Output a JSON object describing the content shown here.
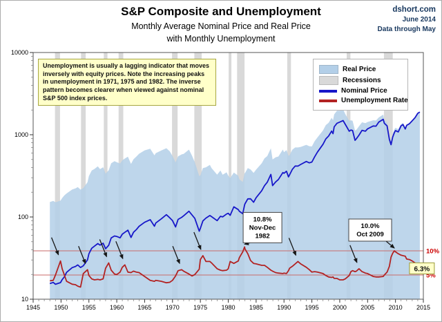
{
  "source": {
    "site": "dshort.com",
    "date": "June 2014",
    "note": "Data through May"
  },
  "note_box": {
    "text": "Unemployment is usually a lagging indicator that moves inversely with equity prices. Note the increasing peaks in unemployment in 1971, 1975 and 1982.  The inverse pattern becomes clearer when viewed against nominal S&P 500 index prices."
  },
  "chart_data": {
    "type": "line",
    "title": "S&P Composite and Unemployment",
    "subtitles": [
      "Monthly Average Nominal Price and Real Price",
      "with Monthly Unemployment"
    ],
    "x_axis": {
      "min": 1945,
      "max": 2015,
      "ticks": [
        1945,
        1950,
        1955,
        1960,
        1965,
        1970,
        1975,
        1980,
        1985,
        1990,
        1995,
        2000,
        2005,
        2010,
        2015
      ]
    },
    "y_axis_price": {
      "scale": "log",
      "min": 10,
      "max": 10000,
      "ticks": [
        10,
        100,
        1000,
        10000
      ]
    },
    "y_axis_unemployment": {
      "min": 0,
      "max": 51,
      "gridlines": [
        {
          "value": 10,
          "label": "10%"
        },
        {
          "value": 5,
          "label": "5%"
        }
      ]
    },
    "legend": {
      "position": "top-right",
      "items": [
        {
          "label": "Real Price",
          "swatch": "area",
          "color": "#b3cfe8"
        },
        {
          "label": "Recessions",
          "swatch": "area",
          "color": "#d9d9d9"
        },
        {
          "label": "Nominal Price",
          "swatch": "line",
          "color": "#1717c9"
        },
        {
          "label": "Unemployment Rate",
          "swatch": "line",
          "color": "#b22222"
        }
      ]
    },
    "series": [
      {
        "name": "Real Price",
        "type": "area",
        "axis": "price",
        "color": "#b3cfe8",
        "column": 2
      },
      {
        "name": "Nominal Price",
        "type": "line",
        "axis": "price",
        "color": "#1717c9",
        "column": 1
      },
      {
        "name": "Unemployment Rate",
        "type": "line",
        "axis": "unemployment",
        "color": "#b22222",
        "column": 3
      }
    ],
    "columns": [
      "year",
      "nominal_price",
      "real_price",
      "unemployment_rate_pct"
    ],
    "points": [
      [
        1948.0,
        15.5,
        152,
        3.8
      ],
      [
        1948.6,
        16.0,
        157,
        3.9
      ],
      [
        1949.0,
        15.2,
        151,
        5.0
      ],
      [
        1949.9,
        15.9,
        158,
        7.9
      ],
      [
        1950.2,
        17.3,
        170,
        6.3
      ],
      [
        1950.6,
        18.7,
        183,
        5.0
      ],
      [
        1951.0,
        21.2,
        193,
        3.7
      ],
      [
        1952.0,
        24.2,
        216,
        3.1
      ],
      [
        1952.6,
        25.0,
        223,
        3.0
      ],
      [
        1953.0,
        26.1,
        231,
        2.7
      ],
      [
        1953.5,
        24.3,
        215,
        2.5
      ],
      [
        1954.0,
        25.5,
        224,
        5.3
      ],
      [
        1954.75,
        30.1,
        264,
        6.1
      ],
      [
        1955.0,
        35.6,
        314,
        4.9
      ],
      [
        1955.5,
        41.6,
        367,
        4.2
      ],
      [
        1956.0,
        44.2,
        384,
        4.0
      ],
      [
        1956.6,
        47.5,
        413,
        4.1
      ],
      [
        1957.0,
        45.4,
        382,
        4.0
      ],
      [
        1957.55,
        47.9,
        403,
        4.2
      ],
      [
        1958.0,
        41.1,
        336,
        6.4
      ],
      [
        1958.55,
        45.2,
        370,
        7.5
      ],
      [
        1959.0,
        55.6,
        451,
        6.0
      ],
      [
        1959.6,
        58.7,
        477,
        5.2
      ],
      [
        1960.0,
        58.0,
        463,
        5.1
      ],
      [
        1960.6,
        55.7,
        445,
        5.6
      ],
      [
        1961.0,
        61.8,
        488,
        6.6
      ],
      [
        1961.45,
        65.1,
        514,
        7.1
      ],
      [
        1962.0,
        69.1,
        541,
        5.6
      ],
      [
        1962.55,
        56.3,
        441,
        5.5
      ],
      [
        1963.0,
        65.1,
        503,
        5.8
      ],
      [
        1963.5,
        70.0,
        541,
        5.6
      ],
      [
        1964.0,
        77.0,
        587,
        5.5
      ],
      [
        1965.0,
        86.1,
        646,
        4.7
      ],
      [
        1966.0,
        92.7,
        676,
        3.9
      ],
      [
        1966.75,
        77.1,
        562,
        3.7
      ],
      [
        1967.0,
        84.5,
        598,
        3.9
      ],
      [
        1968.0,
        95.0,
        645,
        3.7
      ],
      [
        1968.9,
        106.5,
        686,
        3.4
      ],
      [
        1969.5,
        97.7,
        629,
        3.5
      ],
      [
        1970.0,
        90.3,
        550,
        3.9
      ],
      [
        1970.55,
        75.7,
        461,
        4.8
      ],
      [
        1971.0,
        93.5,
        546,
        5.9
      ],
      [
        1971.65,
        99.0,
        577,
        6.1
      ],
      [
        1972.0,
        103.3,
        584,
        5.8
      ],
      [
        1972.95,
        117.5,
        660,
        5.2
      ],
      [
        1973.5,
        105.8,
        558,
        4.8
      ],
      [
        1974.0,
        96.1,
        461,
        5.1
      ],
      [
        1974.8,
        67.1,
        315,
        6.2
      ],
      [
        1975.0,
        72.6,
        319,
        8.2
      ],
      [
        1975.45,
        89.6,
        393,
        9.0
      ],
      [
        1976.0,
        96.9,
        402,
        7.8
      ],
      [
        1976.7,
        104.2,
        430,
        7.8
      ],
      [
        1977.0,
        100.9,
        393,
        7.5
      ],
      [
        1978.0,
        90.2,
        327,
        6.3
      ],
      [
        1978.6,
        102.0,
        368,
        6.0
      ],
      [
        1979.0,
        100.1,
        326,
        5.9
      ],
      [
        1979.7,
        108.6,
        349,
        6.0
      ],
      [
        1980.0,
        110.9,
        318,
        6.3
      ],
      [
        1980.35,
        104.7,
        297,
        7.8
      ],
      [
        1981.0,
        133.0,
        346,
        7.4
      ],
      [
        1981.8,
        122.9,
        317,
        7.9
      ],
      [
        1982.0,
        117.3,
        287,
        8.6
      ],
      [
        1982.6,
        109.7,
        266,
        9.8
      ],
      [
        1982.92,
        139.4,
        339,
        10.8
      ],
      [
        1983.0,
        144.3,
        342,
        10.4
      ],
      [
        1983.5,
        166.0,
        393,
        9.4
      ],
      [
        1984.0,
        166.4,
        378,
        8.0
      ],
      [
        1984.55,
        151.1,
        343,
        7.4
      ],
      [
        1985.0,
        171.6,
        377,
        7.3
      ],
      [
        1986.0,
        208.2,
        449,
        7.0
      ],
      [
        1986.5,
        240.2,
        517,
        7.0
      ],
      [
        1987.0,
        264.5,
        550,
        6.6
      ],
      [
        1987.65,
        329.4,
        685,
        6.0
      ],
      [
        1987.95,
        240.9,
        501,
        5.8
      ],
      [
        1988.5,
        266.7,
        532,
        5.5
      ],
      [
        1989.0,
        285.4,
        544,
        5.4
      ],
      [
        1989.8,
        347.0,
        661,
        5.3
      ],
      [
        1990.0,
        339.9,
        614,
        5.4
      ],
      [
        1990.45,
        360.0,
        650,
        5.3
      ],
      [
        1990.8,
        307.1,
        555,
        5.9
      ],
      [
        1991.0,
        325.5,
        563,
        6.4
      ],
      [
        1991.5,
        379.4,
        658,
        6.8
      ],
      [
        1992.0,
        416.1,
        701,
        7.3
      ],
      [
        1992.5,
        415.4,
        700,
        7.8
      ],
      [
        1993.0,
        435.2,
        712,
        7.3
      ],
      [
        1994.0,
        472.9,
        754,
        6.6
      ],
      [
        1994.55,
        454.8,
        725,
        6.1
      ],
      [
        1995.0,
        465.3,
        721,
        5.6
      ],
      [
        1995.5,
        539.4,
        836,
        5.7
      ],
      [
        1996.0,
        614.4,
        925,
        5.6
      ],
      [
        1997.0,
        766.2,
        1128,
        5.3
      ],
      [
        1997.5,
        891.1,
        1312,
        4.9
      ],
      [
        1998.0,
        963.4,
        1397,
        4.6
      ],
      [
        1998.55,
        1108.4,
        1607,
        4.5
      ],
      [
        1998.8,
        1032.0,
        1497,
        4.6
      ],
      [
        1999.0,
        1248.8,
        1771,
        4.3
      ],
      [
        1999.5,
        1380.0,
        1957,
        4.3
      ],
      [
        2000.0,
        1425.6,
        1956,
        4.0
      ],
      [
        2000.6,
        1485.5,
        2038,
        4.0
      ],
      [
        2001.0,
        1335.6,
        1782,
        4.2
      ],
      [
        2001.7,
        1104.0,
        1473,
        4.9
      ],
      [
        2002.0,
        1140.2,
        1498,
        5.7
      ],
      [
        2002.3,
        1125.0,
        1478,
        5.9
      ],
      [
        2002.75,
        854.6,
        1123,
        5.7
      ],
      [
        2003.0,
        895.8,
        1150,
        5.8
      ],
      [
        2003.45,
        988.0,
        1269,
        6.3
      ],
      [
        2004.0,
        1132.5,
        1417,
        5.7
      ],
      [
        2004.6,
        1104.0,
        1381,
        5.4
      ],
      [
        2005.0,
        1181.4,
        1430,
        5.3
      ],
      [
        2006.0,
        1278.7,
        1499,
        4.7
      ],
      [
        2006.5,
        1270.2,
        1489,
        4.6
      ],
      [
        2007.0,
        1424.2,
        1623,
        4.6
      ],
      [
        2007.8,
        1539.7,
        1755,
        4.7
      ],
      [
        2008.0,
        1378.8,
        1513,
        5.0
      ],
      [
        2008.5,
        1280.0,
        1405,
        5.6
      ],
      [
        2008.9,
        877.6,
        963,
        6.8
      ],
      [
        2009.2,
        757.1,
        834,
        8.7
      ],
      [
        2009.5,
        935.8,
        1030,
        9.5
      ],
      [
        2009.8,
        1057.1,
        1163,
        10.0
      ],
      [
        2010.0,
        1123.6,
        1213,
        9.8
      ],
      [
        2010.5,
        1083.4,
        1169,
        9.4
      ],
      [
        2011.0,
        1282.6,
        1347,
        9.1
      ],
      [
        2011.35,
        1331.0,
        1396,
        9.0
      ],
      [
        2011.75,
        1173.9,
        1233,
        8.9
      ],
      [
        2012.0,
        1300.6,
        1338,
        8.3
      ],
      [
        2012.5,
        1359.0,
        1396,
        8.2
      ],
      [
        2013.0,
        1480.4,
        1501,
        7.9
      ],
      [
        2013.5,
        1609.5,
        1630,
        7.5
      ],
      [
        2014.0,
        1822.4,
        1830,
        6.6
      ],
      [
        2014.37,
        1890.0,
        1890,
        6.3
      ]
    ],
    "recessions": [
      [
        1948.92,
        1949.83
      ],
      [
        1953.58,
        1954.42
      ],
      [
        1957.67,
        1958.33
      ],
      [
        1960.33,
        1961.17
      ],
      [
        1969.92,
        1970.92
      ],
      [
        1973.92,
        1975.25
      ],
      [
        1980.08,
        1980.58
      ],
      [
        1981.58,
        1982.92
      ],
      [
        1990.58,
        1991.25
      ],
      [
        2001.25,
        2001.92
      ],
      [
        2007.92,
        2009.5
      ]
    ],
    "annotations": {
      "callouts": [
        {
          "lines": [
            "10.8%",
            "Nov-Dec",
            "1982"
          ],
          "year": 1982.92,
          "unemployment": 10.8,
          "box_offset": [
            -2,
            -50
          ]
        },
        {
          "lines": [
            "10.0%",
            "Oct 2009"
          ],
          "year": 2009.8,
          "unemployment": 10.0,
          "box_offset": [
            -66,
            -46
          ]
        }
      ],
      "value_label": {
        "text": "6.3%",
        "year": 2014.37,
        "unemployment": 6.3
      },
      "arrows": [
        {
          "year": 1949.9,
          "unemployment": 7.9
        },
        {
          "year": 1954.75,
          "unemployment": 6.1
        },
        {
          "year": 1958.55,
          "unemployment": 7.5
        },
        {
          "year": 1961.45,
          "unemployment": 7.1
        },
        {
          "year": 1971.65,
          "unemployment": 6.1
        },
        {
          "year": 1975.45,
          "unemployment": 9.0
        },
        {
          "year": 1992.5,
          "unemployment": 7.8
        },
        {
          "year": 2003.45,
          "unemployment": 6.3
        }
      ]
    }
  }
}
